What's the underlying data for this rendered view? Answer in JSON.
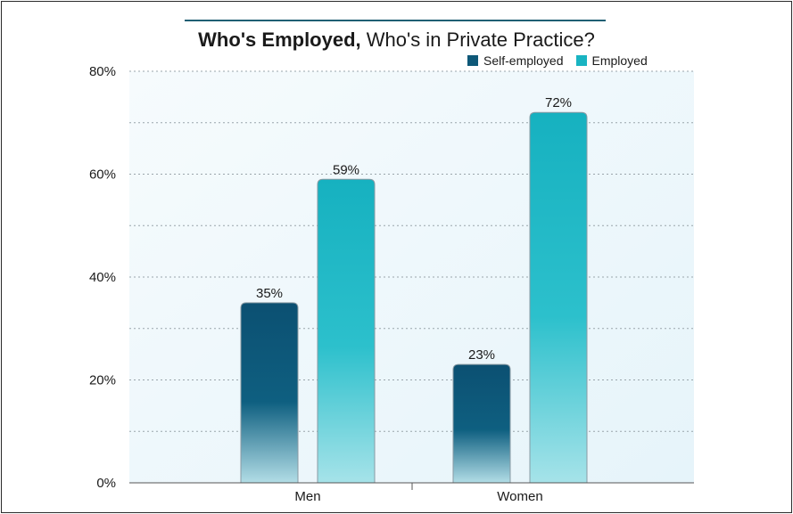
{
  "chart_data": {
    "type": "bar",
    "title_bold": "Who's Employed,",
    "title_rest": " Who's in Private Practice?",
    "categories": [
      "Men",
      "Women"
    ],
    "series": [
      {
        "name": "Self-employed",
        "values": [
          35,
          23
        ],
        "labels": [
          "35%",
          "23%"
        ],
        "color": "#0e5878"
      },
      {
        "name": "Employed",
        "values": [
          59,
          72
        ],
        "labels": [
          "59%",
          "72%"
        ],
        "color": "#19b4c2"
      }
    ],
    "ylim": [
      0,
      80
    ],
    "yticks": [
      {
        "value": 0,
        "label": "0%"
      },
      {
        "value": 20,
        "label": "20%"
      },
      {
        "value": 40,
        "label": "40%"
      },
      {
        "value": 60,
        "label": "60%"
      },
      {
        "value": 80,
        "label": "80%"
      }
    ],
    "grid": true,
    "legend_position": "top-right"
  }
}
